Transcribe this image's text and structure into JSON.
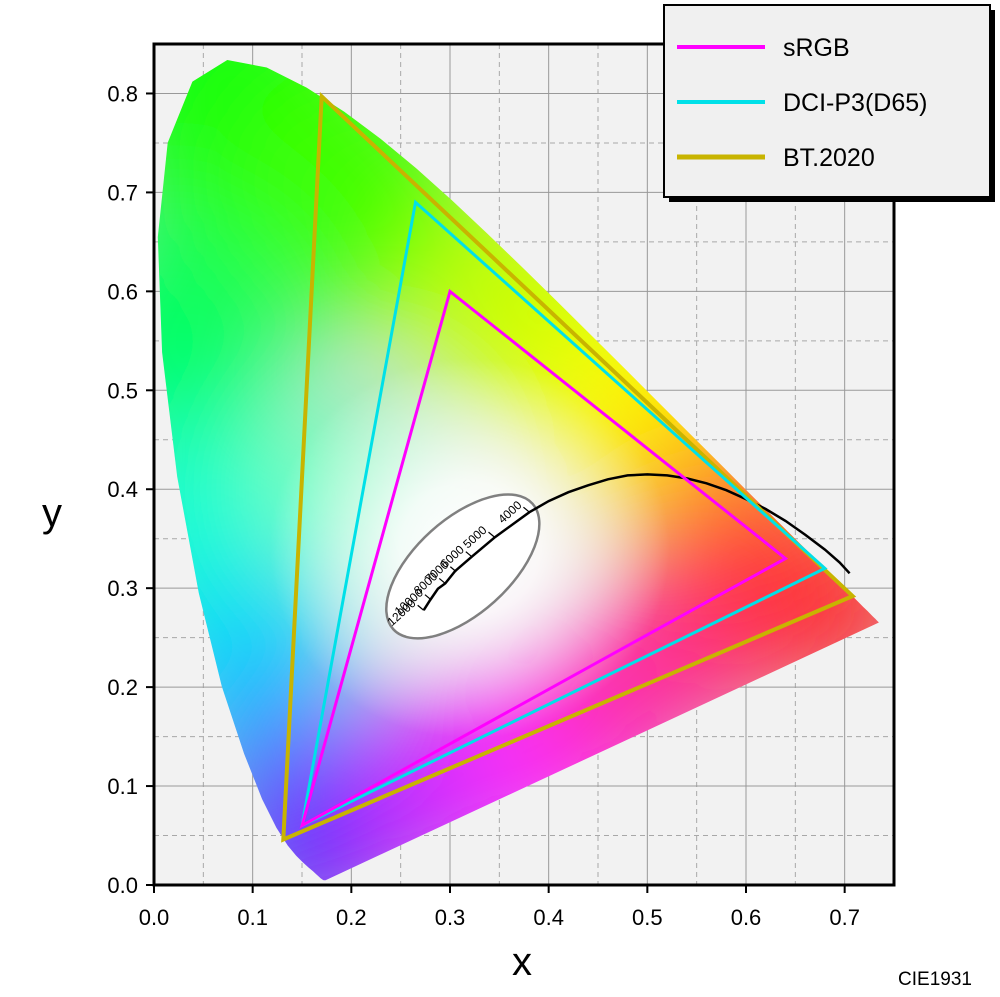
{
  "chart_data": {
    "type": "line",
    "xlabel": "x",
    "ylabel": "y",
    "xlim": [
      0.0,
      0.75
    ],
    "ylim": [
      0.0,
      0.85
    ],
    "x_ticks": [
      "0.0",
      "0.1",
      "0.2",
      "0.3",
      "0.4",
      "0.5",
      "0.6",
      "0.7"
    ],
    "y_ticks": [
      "0.0",
      "0.1",
      "0.2",
      "0.3",
      "0.4",
      "0.5",
      "0.6",
      "0.7",
      "0.8"
    ],
    "grid": true,
    "legend_position": "top-right",
    "caption": "CIE1931",
    "series": [
      {
        "name": "sRGB",
        "color": "#ff00ff",
        "points": [
          [
            0.64,
            0.33
          ],
          [
            0.3,
            0.6
          ],
          [
            0.15,
            0.06
          ]
        ]
      },
      {
        "name": "DCI-P3(D65)",
        "color": "#00e0e8",
        "points": [
          [
            0.68,
            0.32
          ],
          [
            0.265,
            0.69
          ],
          [
            0.15,
            0.06
          ]
        ]
      },
      {
        "name": "BT.2020",
        "color": "#c8b400",
        "points": [
          [
            0.708,
            0.292
          ],
          [
            0.17,
            0.797
          ],
          [
            0.131,
            0.046
          ]
        ]
      }
    ],
    "spectral_locus": [
      [
        0.1741,
        0.005
      ],
      [
        0.1738,
        0.0049
      ],
      [
        0.1736,
        0.0049
      ],
      [
        0.1733,
        0.0048
      ],
      [
        0.173,
        0.0048
      ],
      [
        0.1726,
        0.0048
      ],
      [
        0.1721,
        0.0048
      ],
      [
        0.1714,
        0.0051
      ],
      [
        0.1703,
        0.0058
      ],
      [
        0.1689,
        0.0069
      ],
      [
        0.1669,
        0.0086
      ],
      [
        0.1644,
        0.0109
      ],
      [
        0.1611,
        0.0138
      ],
      [
        0.1566,
        0.0177
      ],
      [
        0.151,
        0.0227
      ],
      [
        0.144,
        0.0297
      ],
      [
        0.1355,
        0.0399
      ],
      [
        0.1241,
        0.0578
      ],
      [
        0.1096,
        0.0868
      ],
      [
        0.0913,
        0.1327
      ],
      [
        0.0687,
        0.2007
      ],
      [
        0.0454,
        0.295
      ],
      [
        0.0235,
        0.4127
      ],
      [
        0.0082,
        0.5384
      ],
      [
        0.0039,
        0.6548
      ],
      [
        0.0139,
        0.7502
      ],
      [
        0.0389,
        0.812
      ],
      [
        0.0743,
        0.8338
      ],
      [
        0.1142,
        0.8262
      ],
      [
        0.1547,
        0.8059
      ],
      [
        0.1929,
        0.7816
      ],
      [
        0.2296,
        0.7543
      ],
      [
        0.2658,
        0.7243
      ],
      [
        0.3016,
        0.6923
      ],
      [
        0.3373,
        0.6589
      ],
      [
        0.3731,
        0.6245
      ],
      [
        0.4087,
        0.5896
      ],
      [
        0.4441,
        0.5547
      ],
      [
        0.4788,
        0.5202
      ],
      [
        0.5125,
        0.4866
      ],
      [
        0.5448,
        0.4544
      ],
      [
        0.5752,
        0.4242
      ],
      [
        0.6029,
        0.3965
      ],
      [
        0.627,
        0.3725
      ],
      [
        0.6482,
        0.3514
      ],
      [
        0.6658,
        0.334
      ],
      [
        0.6801,
        0.3197
      ],
      [
        0.6915,
        0.3083
      ],
      [
        0.7006,
        0.2993
      ],
      [
        0.7079,
        0.292
      ],
      [
        0.714,
        0.2859
      ],
      [
        0.719,
        0.2809
      ],
      [
        0.723,
        0.277
      ],
      [
        0.726,
        0.274
      ],
      [
        0.7283,
        0.2717
      ],
      [
        0.73,
        0.27
      ],
      [
        0.7311,
        0.2689
      ],
      [
        0.732,
        0.268
      ],
      [
        0.7327,
        0.2673
      ],
      [
        0.7334,
        0.2666
      ],
      [
        0.734,
        0.266
      ],
      [
        0.7344,
        0.2656
      ],
      [
        0.7346,
        0.2654
      ],
      [
        0.7347,
        0.2653
      ]
    ],
    "planckian_locus": [
      [
        0.2733,
        0.2777
      ],
      [
        0.2799,
        0.288
      ],
      [
        0.2877,
        0.2994
      ],
      [
        0.2952,
        0.3048
      ],
      [
        0.3052,
        0.3173
      ],
      [
        0.3221,
        0.3318
      ],
      [
        0.3457,
        0.3516
      ],
      [
        0.3805,
        0.3768
      ],
      [
        0.4,
        0.388
      ],
      [
        0.42,
        0.397
      ],
      [
        0.44,
        0.404
      ],
      [
        0.46,
        0.41
      ],
      [
        0.48,
        0.414
      ],
      [
        0.5,
        0.415
      ],
      [
        0.52,
        0.414
      ],
      [
        0.54,
        0.411
      ],
      [
        0.56,
        0.406
      ],
      [
        0.58,
        0.399
      ],
      [
        0.6,
        0.39
      ],
      [
        0.62,
        0.38
      ],
      [
        0.64,
        0.368
      ],
      [
        0.66,
        0.354
      ],
      [
        0.68,
        0.339
      ],
      [
        0.695,
        0.326
      ],
      [
        0.705,
        0.315
      ]
    ],
    "cct_labels": [
      {
        "label": "4000",
        "x": 0.3805,
        "y": 0.3768
      },
      {
        "label": "5000",
        "x": 0.3451,
        "y": 0.3516
      },
      {
        "label": "6000",
        "x": 0.3221,
        "y": 0.3318
      },
      {
        "label": "7000",
        "x": 0.3064,
        "y": 0.3166
      },
      {
        "label": "8000",
        "x": 0.2952,
        "y": 0.3048
      },
      {
        "label": "10000",
        "x": 0.2807,
        "y": 0.2884
      },
      {
        "label": "12000",
        "x": 0.2733,
        "y": 0.2777
      }
    ],
    "cct_ellipse": {
      "cx": 0.313,
      "cy": 0.322,
      "rx": 0.095,
      "ry": 0.048,
      "angle_deg": 42,
      "color": "#808080"
    }
  }
}
